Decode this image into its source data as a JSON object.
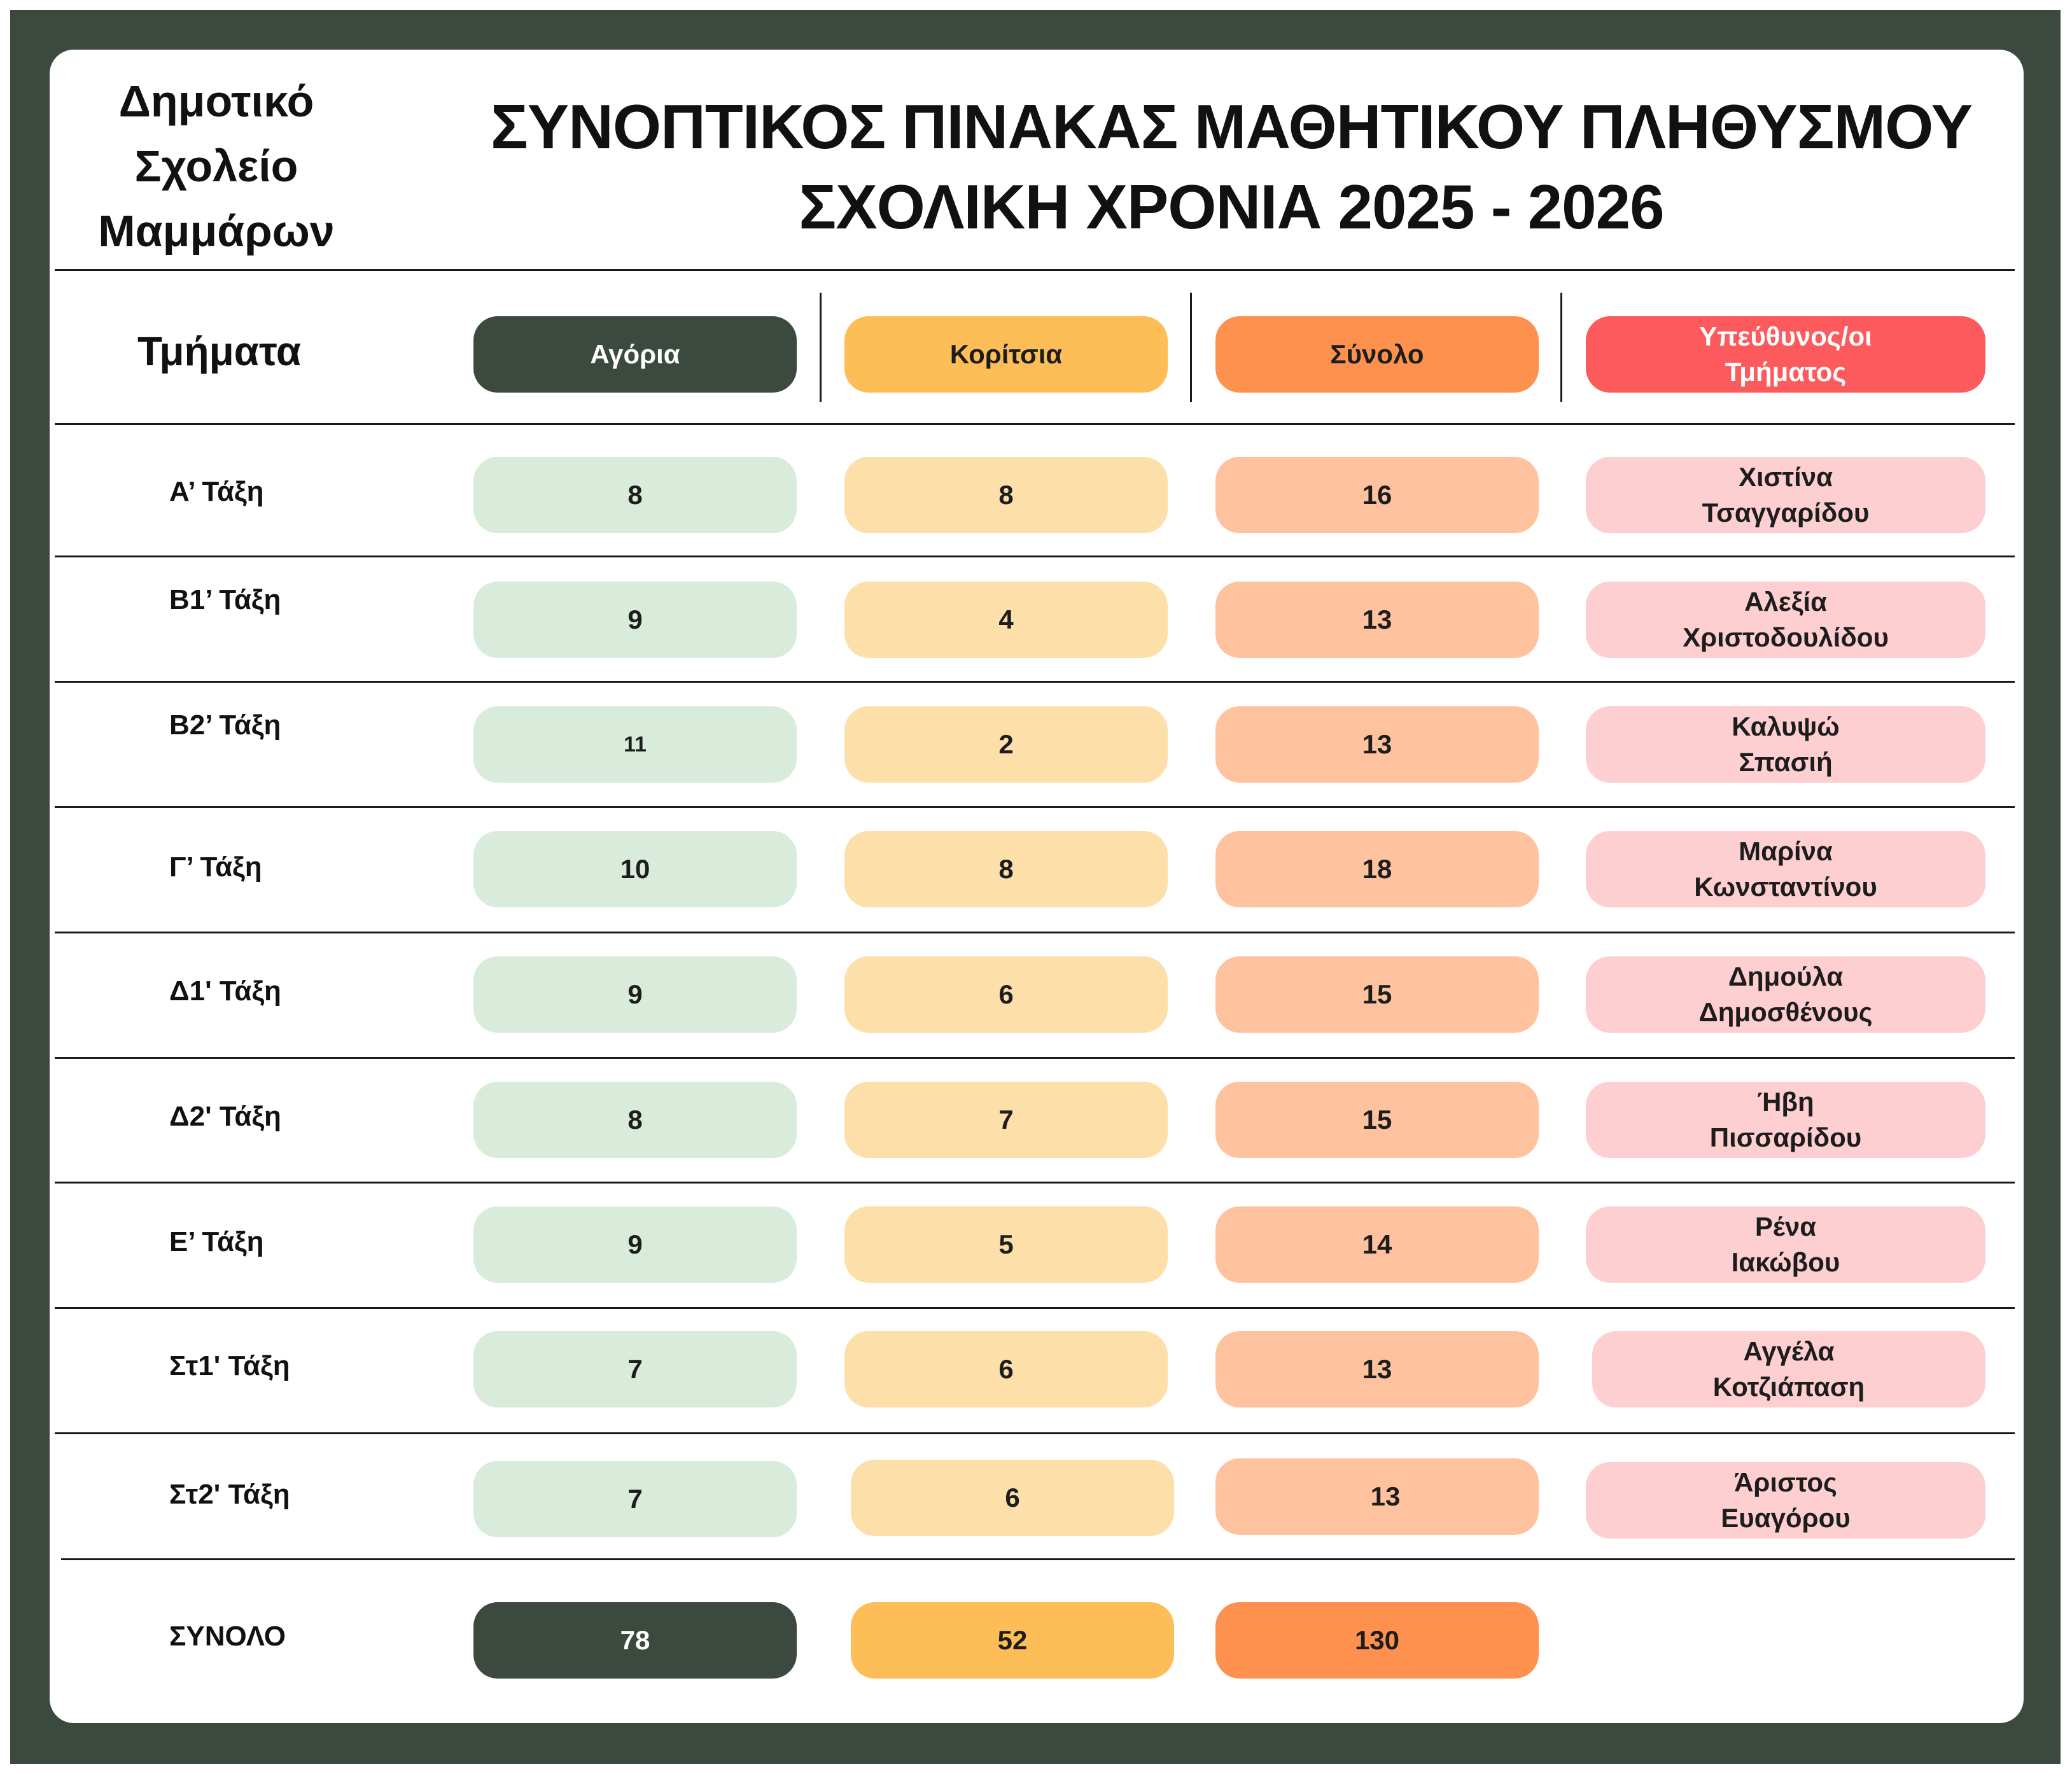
{
  "school": {
    "line1": "Δημοτικό",
    "line2": "Σχολείο",
    "line3": "Μαμμάρων"
  },
  "title": {
    "line1": "ΣΥΝΟΠΤΙΚΟΣ ΠΙΝΑΚΑΣ ΜΑΘΗΤΙΚΟΥ ΠΛΗΘΥΣΜΟΥ",
    "line2": "ΣΧΟΛΙΚΗ ΧΡΟΝΙΑ 2025 - 2026"
  },
  "headers": {
    "sections": "Τμήματα",
    "boys": "Αγόρια",
    "girls": "Κορίτσια",
    "total": "Σύνολο",
    "responsible_line1": "Υπεύθυνος/οι",
    "responsible_line2": "Τμήματος"
  },
  "rows": [
    {
      "label": "Α’ Τάξη",
      "boys": "8",
      "girls": "8",
      "total": "16",
      "resp1": "Χιστίνα",
      "resp2": "Τσαγγαρίδου"
    },
    {
      "label": "Β1’ Τάξη",
      "boys": "9",
      "girls": "4",
      "total": "13",
      "resp1": "Αλεξία",
      "resp2": "Χριστοδουλίδου"
    },
    {
      "label": "Β2’ Τάξη",
      "boys": "11",
      "girls": "2",
      "total": "13",
      "resp1": "Καλυψώ",
      "resp2": "Σπασιή"
    },
    {
      "label": "Γ’ Τάξη",
      "boys": "10",
      "girls": "8",
      "total": "18",
      "resp1": "Μαρίνα",
      "resp2": "Κωνσταντίνου"
    },
    {
      "label": "Δ1' Τάξη",
      "boys": "9",
      "girls": "6",
      "total": "15",
      "resp1": "Δημούλα",
      "resp2": "Δημοσθένους"
    },
    {
      "label": "Δ2' Τάξη",
      "boys": "8",
      "girls": "7",
      "total": "15",
      "resp1": "Ήβη",
      "resp2": "Πισσαρίδου"
    },
    {
      "label": "Ε’ Τάξη",
      "boys": "9",
      "girls": "5",
      "total": "14",
      "resp1": "Ρένα",
      "resp2": "Ιακώβου"
    },
    {
      "label": "Στ1' Τάξη",
      "boys": "7",
      "girls": "6",
      "total": "13",
      "resp1": "Αγγέλα",
      "resp2": "Κοτζιάπαση"
    },
    {
      "label": "Στ2' Τάξη",
      "boys": "7",
      "girls": "6",
      "total": "13",
      "resp1": "Άριστος",
      "resp2": "Ευαγόρου"
    }
  ],
  "totals": {
    "label": "ΣΥΝΟΛΟ",
    "boys": "78",
    "girls": "52",
    "total": "130"
  },
  "colors": {
    "frame": "#3c493f",
    "boys_header": "#3c493f",
    "girls_header": "#fdbd57",
    "total_header": "#fe914e",
    "responsible_header": "#fd5a5e",
    "boys_cell": "#d9ecdc",
    "girls_cell": "#fddfaa",
    "total_cell": "#fec29e",
    "responsible_cell": "#fdcfd0"
  }
}
